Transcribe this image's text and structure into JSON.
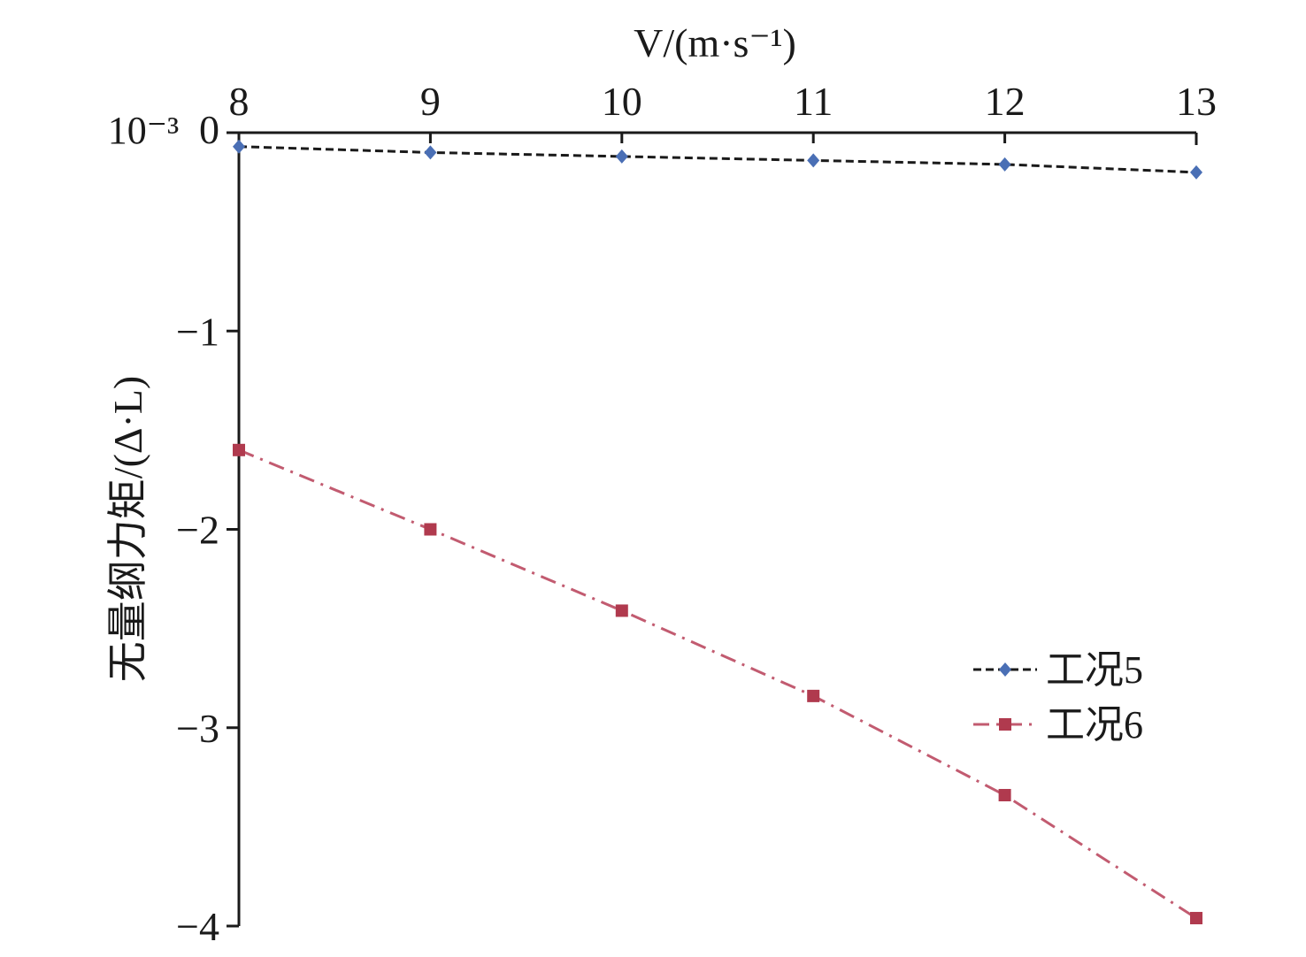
{
  "chart_data": {
    "type": "line",
    "xlabel": "V/(m·s⁻¹)",
    "ylabel": "无量纲力矩/(Δ·L)",
    "y_scale_label": "10⁻³",
    "x_axis_position": "top",
    "grid": false,
    "legend_position": "right",
    "xlim": [
      8,
      13
    ],
    "ylim": [
      -4,
      0
    ],
    "x": [
      8,
      9,
      10,
      11,
      12,
      13
    ],
    "x_tick_labels": [
      "8",
      "9",
      "10",
      "11",
      "12",
      "13"
    ],
    "y_ticks": [
      0,
      -1,
      -2,
      -3,
      -4
    ],
    "y_tick_labels": [
      "0",
      "−1",
      "−2",
      "−3",
      "−4"
    ],
    "series": [
      {
        "name": "工况5",
        "values": [
          -0.07,
          -0.1,
          -0.12,
          -0.14,
          -0.16,
          -0.2
        ],
        "color": "#4a6fb5",
        "line_color": "#1a1a1a",
        "marker": "diamond",
        "line_style": "dashed"
      },
      {
        "name": "工况6",
        "values": [
          -1.6,
          -2.0,
          -2.41,
          -2.84,
          -3.34,
          -3.96
        ],
        "color": "#b03a4e",
        "line_color": "#c25b70",
        "marker": "square",
        "line_style": "dashdot"
      }
    ]
  }
}
